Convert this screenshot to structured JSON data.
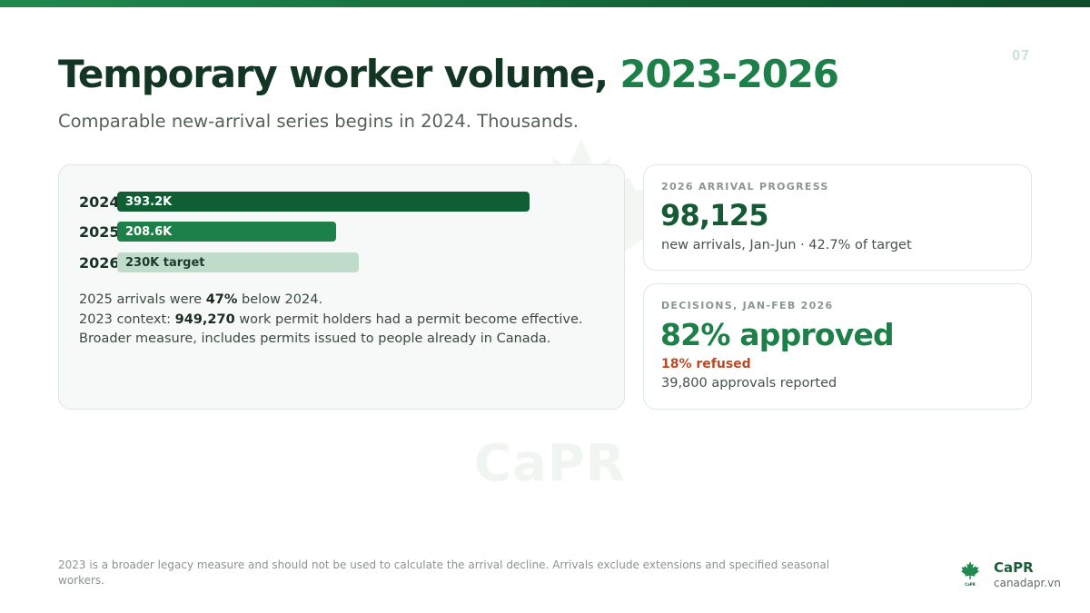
{
  "page": {
    "number": "07"
  },
  "title": {
    "main": "Temporary worker volume,",
    "accent": "2023-2026"
  },
  "subtitle": "Comparable new-arrival series begins in 2024. Thousands.",
  "chart_data": {
    "type": "bar",
    "orientation": "horizontal",
    "unit": "thousands",
    "xlim": [
      0,
      450
    ],
    "bars": [
      {
        "category": "2024",
        "value": 393.2,
        "label": "393.2K",
        "color": "#0f5e34"
      },
      {
        "category": "2025",
        "value": 208.6,
        "label": "208.6K",
        "color": "#1c8048"
      },
      {
        "category": "2026",
        "value": 230,
        "label": "230K target",
        "color": "#bfdccb"
      }
    ]
  },
  "notes": {
    "line1_pre": "2025 arrivals were ",
    "line1_bold": "47%",
    "line1_post": " below 2024.",
    "line2_pre": "2023 context: ",
    "line2_bold": "949,270",
    "line2_post": " work permit holders had a permit become effective. Broader measure, includes permits issued to people already in Canada."
  },
  "progress_card": {
    "kicker": "2026 ARRIVAL PROGRESS",
    "value": "98,125",
    "caption": "new arrivals, Jan-Jun · 42.7% of target"
  },
  "decisions_card": {
    "kicker": "DECISIONS, JAN-FEB 2026",
    "value": "82% approved",
    "refused": "18% refused",
    "caption": "39,800 approvals reported"
  },
  "footer": "2023 is a broader legacy measure and should not be used to calculate the arrival decline. Arrivals exclude extensions and specified seasonal workers.",
  "brand": {
    "name": "CaPR",
    "url": "canadapr.vn",
    "watermark": "CaPR",
    "logo_text": "CaPR"
  },
  "colors": {
    "accent": "#1c8048",
    "dark": "#123524",
    "refused": "#b94a25"
  }
}
